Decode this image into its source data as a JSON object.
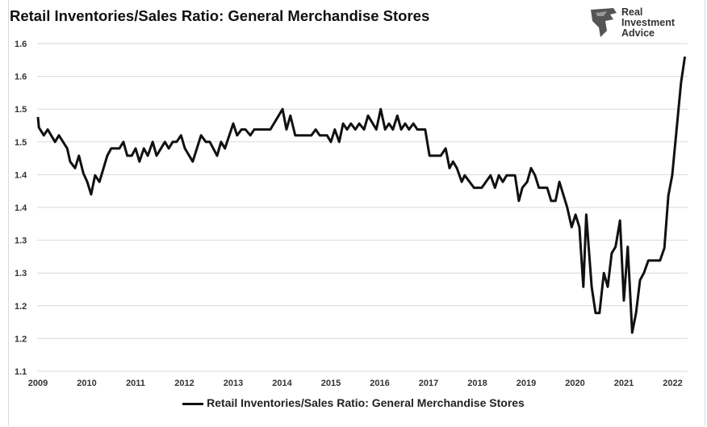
{
  "chart_data": {
    "type": "line",
    "title": "Retail Inventories/Sales Ratio: General Merchandise Stores",
    "xlabel": "",
    "ylabel": "",
    "xlim": [
      2009,
      2022.4
    ],
    "ylim": [
      1.1,
      1.6
    ],
    "grid": true,
    "legend_position": "bottom",
    "x_ticks": [
      "2009",
      "2010",
      "2011",
      "2012",
      "2013",
      "2014",
      "2015",
      "2016",
      "2017",
      "2018",
      "2019",
      "2020",
      "2021",
      "2022"
    ],
    "y_ticks": [
      {
        "value": 1.6,
        "label": "1.6"
      },
      {
        "value": 1.55,
        "label": "1.6"
      },
      {
        "value": 1.5,
        "label": "1.5"
      },
      {
        "value": 1.45,
        "label": "1.5"
      },
      {
        "value": 1.4,
        "label": "1.4"
      },
      {
        "value": 1.35,
        "label": "1.4"
      },
      {
        "value": 1.3,
        "label": "1.3"
      },
      {
        "value": 1.25,
        "label": "1.3"
      },
      {
        "value": 1.2,
        "label": "1.2"
      },
      {
        "value": 1.15,
        "label": "1.2"
      },
      {
        "value": 1.1,
        "label": "1.1"
      }
    ],
    "series": [
      {
        "name": "Retail Inventories/Sales Ratio: General Merchandise Stores",
        "color": "#111111",
        "x": [
          2009.0,
          2009.02,
          2009.12,
          2009.2,
          2009.35,
          2009.43,
          2009.6,
          2009.66,
          2009.76,
          2009.84,
          2009.93,
          2010.01,
          2010.09,
          2010.17,
          2010.26,
          2010.42,
          2010.5,
          2010.67,
          2010.75,
          2010.83,
          2010.92,
          2011.0,
          2011.08,
          2011.17,
          2011.25,
          2011.35,
          2011.43,
          2011.6,
          2011.68,
          2011.76,
          2011.84,
          2011.93,
          2012.01,
          2012.17,
          2012.34,
          2012.44,
          2012.52,
          2012.67,
          2012.75,
          2012.83,
          2013.0,
          2013.08,
          2013.17,
          2013.25,
          2013.35,
          2013.43,
          2013.76,
          2014.01,
          2014.09,
          2014.17,
          2014.27,
          2014.6,
          2014.69,
          2014.77,
          2014.92,
          2015.0,
          2015.08,
          2015.17,
          2015.25,
          2015.33,
          2015.41,
          2015.5,
          2015.58,
          2015.68,
          2015.76,
          2015.93,
          2016.02,
          2016.11,
          2016.19,
          2016.27,
          2016.36,
          2016.44,
          2016.52,
          2016.6,
          2016.69,
          2016.77,
          2016.93,
          2017.02,
          2017.25,
          2017.35,
          2017.43,
          2017.5,
          2017.58,
          2017.68,
          2017.74,
          2017.93,
          2018.09,
          2018.27,
          2018.36,
          2018.44,
          2018.52,
          2018.6,
          2018.77,
          2018.85,
          2018.92,
          2019.02,
          2019.1,
          2019.18,
          2019.26,
          2019.43,
          2019.51,
          2019.6,
          2019.68,
          2019.84,
          2019.93,
          2020.01,
          2020.09,
          2020.17,
          2020.23,
          2020.34,
          2020.42,
          2020.5,
          2020.59,
          2020.67,
          2020.75,
          2020.83,
          2020.92,
          2021.0,
          2021.08,
          2021.17,
          2021.25,
          2021.33,
          2021.41,
          2021.5,
          2021.74,
          2021.83,
          2021.91,
          2021.99,
          2022.07,
          2022.17,
          2022.25
        ],
        "y": [
          1.488,
          1.472,
          1.46,
          1.469,
          1.45,
          1.46,
          1.44,
          1.42,
          1.41,
          1.429,
          1.402,
          1.389,
          1.37,
          1.399,
          1.389,
          1.429,
          1.44,
          1.44,
          1.45,
          1.429,
          1.429,
          1.44,
          1.42,
          1.44,
          1.429,
          1.45,
          1.429,
          1.45,
          1.44,
          1.45,
          1.45,
          1.46,
          1.44,
          1.42,
          1.46,
          1.45,
          1.45,
          1.429,
          1.45,
          1.44,
          1.478,
          1.46,
          1.469,
          1.469,
          1.46,
          1.469,
          1.469,
          1.5,
          1.469,
          1.49,
          1.46,
          1.46,
          1.469,
          1.46,
          1.46,
          1.45,
          1.469,
          1.45,
          1.478,
          1.469,
          1.478,
          1.469,
          1.478,
          1.469,
          1.49,
          1.469,
          1.5,
          1.469,
          1.478,
          1.469,
          1.49,
          1.469,
          1.478,
          1.469,
          1.478,
          1.469,
          1.469,
          1.429,
          1.429,
          1.44,
          1.41,
          1.42,
          1.41,
          1.389,
          1.399,
          1.38,
          1.38,
          1.399,
          1.38,
          1.399,
          1.389,
          1.399,
          1.399,
          1.36,
          1.38,
          1.389,
          1.41,
          1.399,
          1.38,
          1.38,
          1.36,
          1.36,
          1.389,
          1.35,
          1.32,
          1.339,
          1.32,
          1.229,
          1.339,
          1.229,
          1.189,
          1.189,
          1.25,
          1.229,
          1.28,
          1.29,
          1.33,
          1.208,
          1.29,
          1.159,
          1.189,
          1.239,
          1.25,
          1.269,
          1.269,
          1.288,
          1.368,
          1.399,
          1.461,
          1.54,
          1.58
        ]
      }
    ]
  },
  "logo": {
    "line1": "Real",
    "line2": "Investment",
    "line3": "Advice"
  }
}
